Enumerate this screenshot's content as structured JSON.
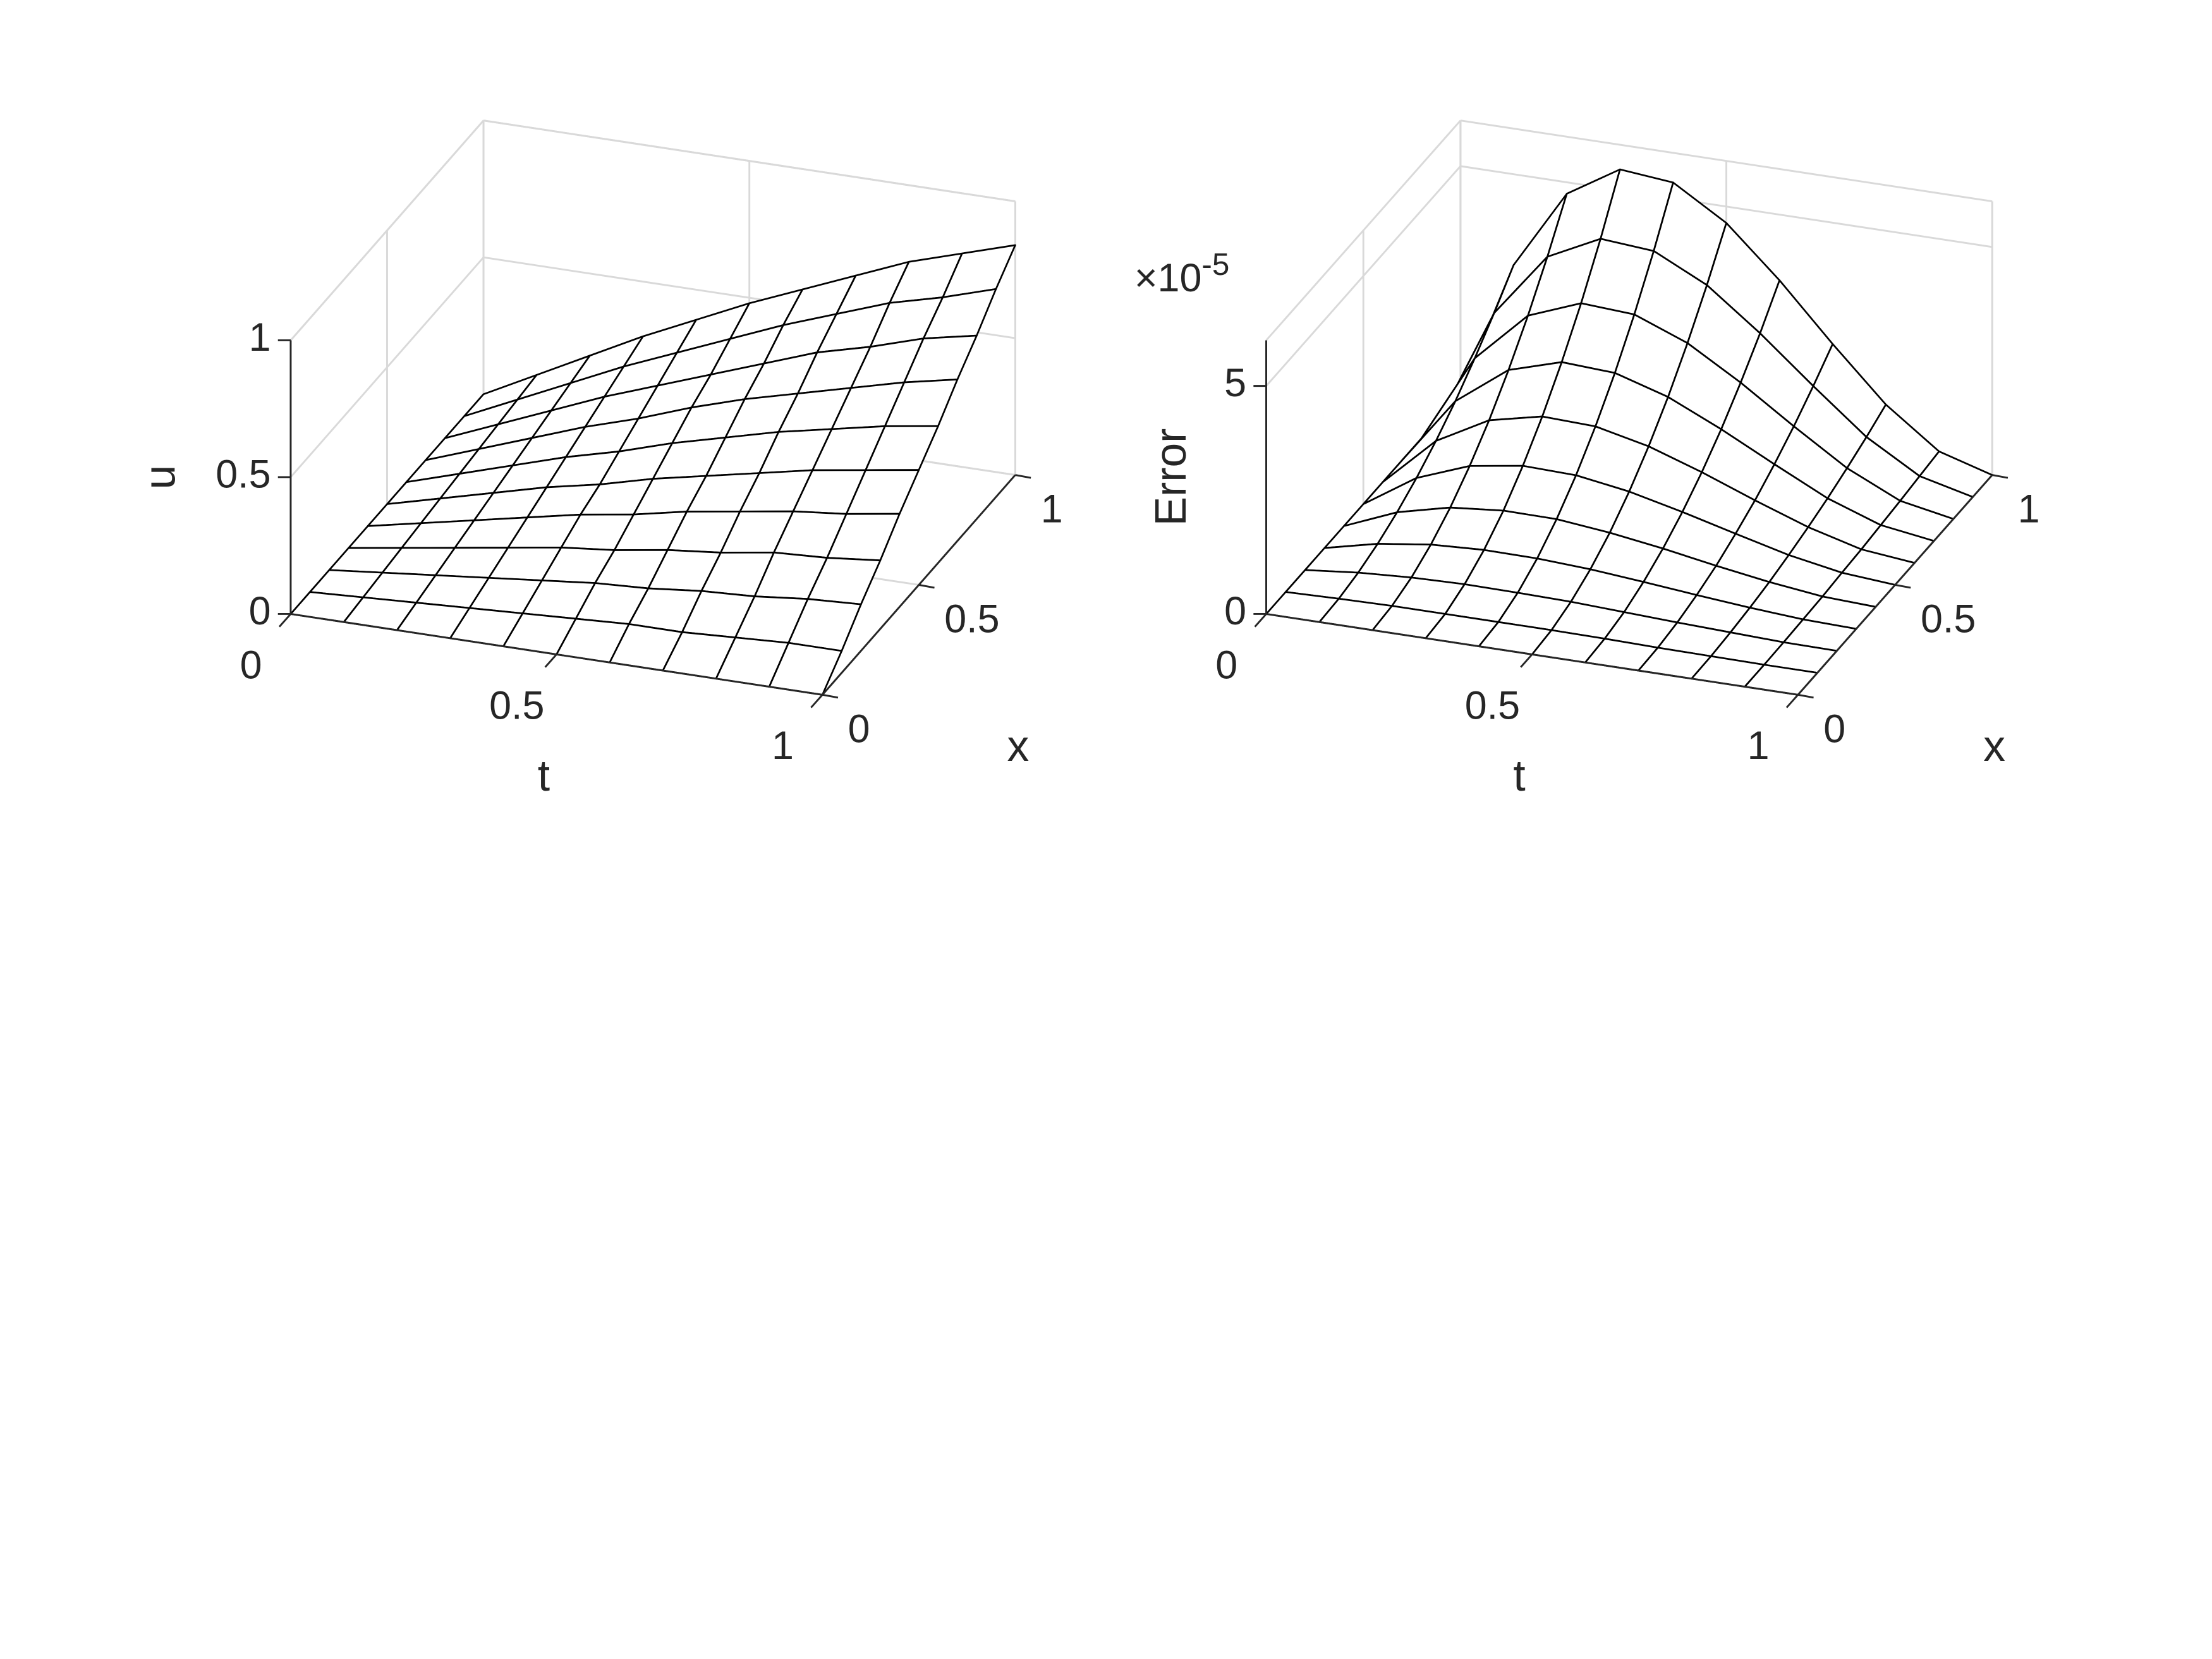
{
  "chart_data": [
    {
      "type": "mesh",
      "xlabel": "t",
      "ylabel": "x",
      "zlabel": "u",
      "color": "#000000",
      "grid": true,
      "t": [
        0,
        0.1,
        0.2,
        0.3,
        0.4,
        0.5,
        0.6,
        0.7,
        0.8,
        0.9,
        1
      ],
      "x": [
        0,
        0.1,
        0.2,
        0.3,
        0.4,
        0.5,
        0.6,
        0.7,
        0.8,
        0.9,
        1
      ],
      "z": [
        [
          0,
          0,
          0,
          0,
          0,
          0,
          0,
          0,
          0,
          0,
          0
        ],
        [
          0,
          0.01,
          0.02,
          0.03,
          0.04,
          0.05,
          0.06,
          0.06,
          0.07,
          0.08,
          0.08
        ],
        [
          0,
          0.02,
          0.04,
          0.06,
          0.08,
          0.1,
          0.11,
          0.13,
          0.14,
          0.16,
          0.17
        ],
        [
          0,
          0.03,
          0.06,
          0.09,
          0.12,
          0.14,
          0.17,
          0.19,
          0.22,
          0.23,
          0.25
        ],
        [
          0,
          0.04,
          0.08,
          0.12,
          0.16,
          0.19,
          0.23,
          0.26,
          0.29,
          0.31,
          0.34
        ],
        [
          0,
          0.05,
          0.1,
          0.15,
          0.19,
          0.24,
          0.28,
          0.32,
          0.36,
          0.39,
          0.42
        ],
        [
          0,
          0.06,
          0.12,
          0.18,
          0.23,
          0.29,
          0.34,
          0.39,
          0.43,
          0.47,
          0.5
        ],
        [
          0,
          0.07,
          0.14,
          0.21,
          0.27,
          0.34,
          0.4,
          0.45,
          0.5,
          0.55,
          0.59
        ],
        [
          0,
          0.08,
          0.16,
          0.24,
          0.31,
          0.38,
          0.45,
          0.52,
          0.57,
          0.63,
          0.67
        ],
        [
          0,
          0.09,
          0.18,
          0.27,
          0.35,
          0.43,
          0.51,
          0.58,
          0.65,
          0.7,
          0.76
        ],
        [
          0,
          0.1,
          0.2,
          0.3,
          0.39,
          0.48,
          0.56,
          0.64,
          0.72,
          0.78,
          0.84
        ]
      ],
      "tlim": [
        0,
        1
      ],
      "xlim": [
        0,
        1
      ],
      "zlim": [
        0,
        1
      ],
      "tticks": [
        0,
        0.5,
        1
      ],
      "xticks": [
        0,
        0.5,
        1
      ],
      "zticks": [
        0,
        0.5,
        1
      ]
    },
    {
      "type": "mesh",
      "xlabel": "t",
      "ylabel": "x",
      "zlabel": "Error",
      "color": "#000000",
      "grid": true,
      "z_multiplier": {
        "base": "×10",
        "exponent": "-5"
      },
      "t": [
        0,
        0.1,
        0.2,
        0.3,
        0.4,
        0.5,
        0.6,
        0.7,
        0.8,
        0.9,
        1
      ],
      "x": [
        0,
        0.1,
        0.2,
        0.3,
        0.4,
        0.5,
        0.6,
        0.7,
        0.8,
        0.9,
        1
      ],
      "z": [
        [
          0,
          0,
          0,
          0,
          0,
          0,
          0,
          0,
          0,
          0,
          0
        ],
        [
          0,
          0.03,
          0.05,
          0.05,
          0.05,
          0.05,
          0.04,
          0.02,
          0.01,
          0,
          0
        ],
        [
          0,
          0.12,
          0.19,
          0.22,
          0.21,
          0.19,
          0.14,
          0.09,
          0.05,
          0.01,
          0
        ],
        [
          0,
          0.27,
          0.43,
          0.49,
          0.48,
          0.42,
          0.32,
          0.21,
          0.11,
          0.03,
          0
        ],
        [
          0,
          0.48,
          0.76,
          0.87,
          0.86,
          0.74,
          0.57,
          0.37,
          0.19,
          0.05,
          0
        ],
        [
          0,
          0.75,
          1.19,
          1.37,
          1.34,
          1.16,
          0.89,
          0.59,
          0.3,
          0.09,
          0
        ],
        [
          0,
          1.08,
          1.71,
          1.97,
          1.93,
          1.67,
          1.28,
          0.84,
          0.43,
          0.12,
          0
        ],
        [
          0,
          1.47,
          2.33,
          2.68,
          2.62,
          2.27,
          1.74,
          1.15,
          0.58,
          0.17,
          0
        ],
        [
          0,
          1.93,
          3.04,
          3.49,
          3.42,
          2.97,
          2.28,
          1.5,
          0.76,
          0.22,
          0
        ],
        [
          0,
          2.44,
          3.85,
          4.42,
          4.33,
          3.76,
          2.88,
          1.9,
          0.96,
          0.28,
          0
        ],
        [
          0,
          3.01,
          4.75,
          5.46,
          5.35,
          4.64,
          3.56,
          2.34,
          1.19,
          0.34,
          0
        ]
      ],
      "tlim": [
        0,
        1
      ],
      "xlim": [
        0,
        1
      ],
      "zlim": [
        0,
        6
      ],
      "tticks": [
        0,
        0.5,
        1
      ],
      "xticks": [
        0,
        0.5,
        1
      ],
      "zticks": [
        0,
        5
      ]
    }
  ]
}
